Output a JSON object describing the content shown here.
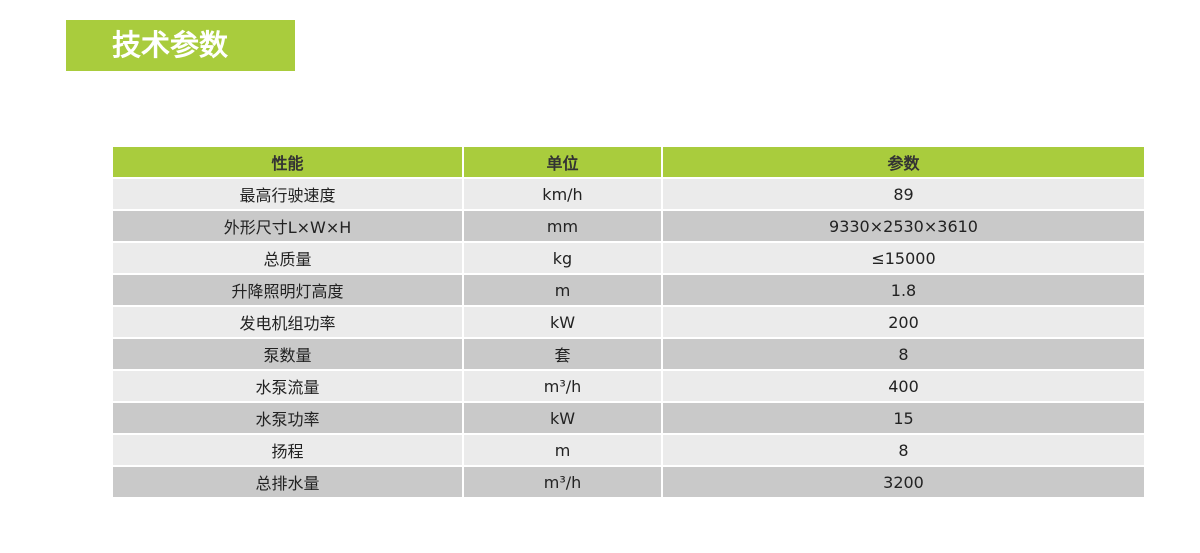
{
  "title": "技术参数",
  "headers": [
    "性能",
    "单位",
    "参数"
  ],
  "rows": [
    [
      "最高行驶速度",
      "km/h",
      "89"
    ],
    [
      "外形尺寸L×W×H",
      "mm",
      "9330×2530×3610"
    ],
    [
      "总质量",
      "kg",
      "≤15000"
    ],
    [
      "升降照明灯高度",
      "m",
      "1.8"
    ],
    [
      "发电机组功率",
      "kW",
      "200"
    ],
    [
      "泵数量",
      "套",
      "8"
    ],
    [
      "水泵流量",
      "m³/h",
      "400"
    ],
    [
      "水泵功率",
      "kW",
      "15"
    ],
    [
      "扬程",
      "m",
      "8"
    ],
    [
      "总排水量",
      "m³/h",
      "3200"
    ]
  ],
  "colors": {
    "accent": "#a9cc3d",
    "row_light": "#ebebeb",
    "row_dark": "#c9c9c9"
  }
}
